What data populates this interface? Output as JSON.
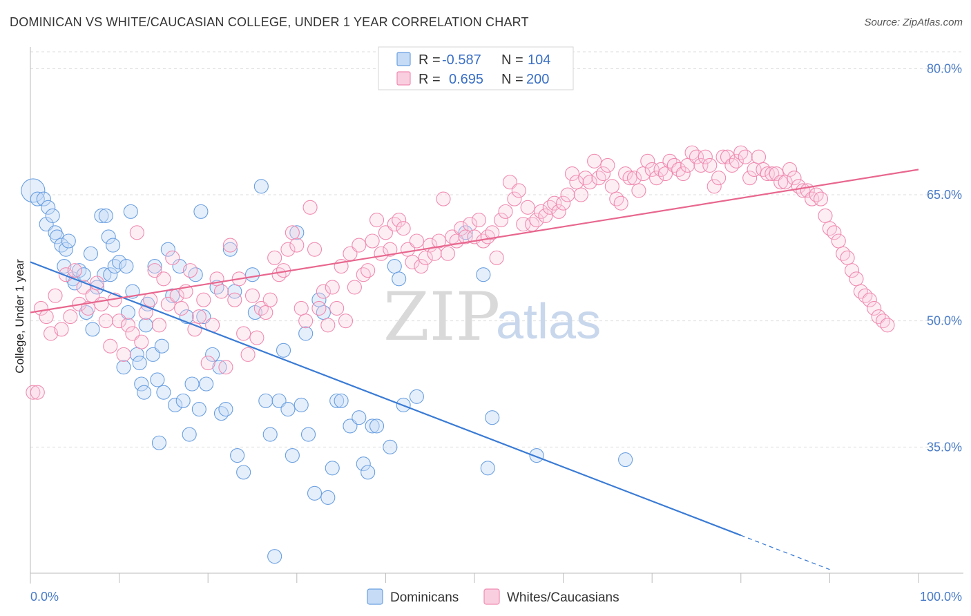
{
  "header": {
    "title": "DOMINICAN VS WHITE/CAUCASIAN COLLEGE, UNDER 1 YEAR CORRELATION CHART",
    "source": "Source: ZipAtlas.com"
  },
  "watermark": {
    "part1": "ZIP",
    "part2": "atlas"
  },
  "legend": {
    "rows": [
      {
        "r_label": "R =",
        "r_value": "-0.587",
        "n_label": "N =",
        "n_value": "104",
        "color": "#6a9fe0"
      },
      {
        "r_label": "R =",
        "r_value": "0.695",
        "n_label": "N =",
        "n_value": "200",
        "color": "#f08bb0"
      }
    ]
  },
  "bottom_legend": {
    "items": [
      {
        "label": "Dominicans",
        "color": "#6a9fe0"
      },
      {
        "label": "Whites/Caucasians",
        "color": "#f08bb0"
      }
    ]
  },
  "chart_data": {
    "type": "scatter",
    "title": "DOMINICAN VS WHITE/CAUCASIAN COLLEGE, UNDER 1 YEAR CORRELATION CHART",
    "xlabel": "",
    "ylabel": "College, Under 1 year",
    "xlim": [
      0,
      100
    ],
    "ylim": [
      20,
      82
    ],
    "x_tick_labels": [
      "0.0%",
      "100.0%"
    ],
    "y_ticks": [
      35,
      50,
      65,
      80
    ],
    "y_tick_labels": [
      "35.0%",
      "50.0%",
      "65.0%",
      "80.0%"
    ],
    "grid": true,
    "series": [
      {
        "name": "Dominicans",
        "color": "#6a9fe0",
        "trend": {
          "x0": 0,
          "y0": 57.0,
          "x1": 80,
          "y1": 24.5,
          "dashed_to_x": 90
        },
        "points": [
          [
            0.3,
            65.5
          ],
          [
            0.8,
            64.5
          ],
          [
            1.5,
            64.5
          ],
          [
            1.8,
            61.5
          ],
          [
            2.0,
            63.5
          ],
          [
            2.5,
            62.5
          ],
          [
            2.8,
            60.5
          ],
          [
            3.0,
            60.0
          ],
          [
            3.5,
            59.0
          ],
          [
            3.8,
            56.5
          ],
          [
            4.0,
            58.5
          ],
          [
            4.3,
            59.5
          ],
          [
            4.8,
            55.0
          ],
          [
            5.0,
            54.5
          ],
          [
            5.5,
            56.0
          ],
          [
            6.0,
            55.5
          ],
          [
            6.3,
            51.0
          ],
          [
            6.8,
            58.0
          ],
          [
            7.0,
            49.0
          ],
          [
            7.5,
            54.0
          ],
          [
            8.0,
            62.5
          ],
          [
            8.3,
            55.5
          ],
          [
            8.5,
            62.5
          ],
          [
            8.8,
            60.0
          ],
          [
            9.0,
            55.5
          ],
          [
            9.3,
            59.0
          ],
          [
            9.5,
            56.5
          ],
          [
            10.0,
            57.0
          ],
          [
            10.5,
            44.5
          ],
          [
            10.8,
            56.5
          ],
          [
            11.0,
            51.0
          ],
          [
            11.3,
            63.0
          ],
          [
            11.5,
            53.5
          ],
          [
            12.0,
            46.0
          ],
          [
            12.3,
            45.0
          ],
          [
            12.5,
            42.5
          ],
          [
            12.8,
            41.5
          ],
          [
            13.0,
            49.5
          ],
          [
            13.2,
            52.0
          ],
          [
            13.8,
            46.0
          ],
          [
            14.0,
            56.5
          ],
          [
            14.3,
            43.0
          ],
          [
            14.5,
            35.5
          ],
          [
            14.8,
            47.0
          ],
          [
            15.0,
            41.5
          ],
          [
            15.5,
            58.5
          ],
          [
            16.0,
            53.0
          ],
          [
            16.3,
            40.0
          ],
          [
            16.8,
            56.5
          ],
          [
            17.2,
            40.5
          ],
          [
            17.6,
            50.5
          ],
          [
            17.9,
            36.5
          ],
          [
            18.2,
            42.5
          ],
          [
            18.6,
            55.5
          ],
          [
            19.0,
            39.5
          ],
          [
            19.2,
            63.0
          ],
          [
            19.5,
            50.5
          ],
          [
            19.8,
            42.5
          ],
          [
            20.5,
            46.0
          ],
          [
            21.0,
            54.0
          ],
          [
            21.3,
            44.5
          ],
          [
            21.5,
            39.0
          ],
          [
            22.0,
            39.5
          ],
          [
            22.5,
            58.5
          ],
          [
            23.0,
            53.5
          ],
          [
            23.3,
            34.0
          ],
          [
            24.0,
            32.0
          ],
          [
            25.0,
            55.5
          ],
          [
            25.3,
            51.0
          ],
          [
            26.0,
            66.0
          ],
          [
            26.5,
            40.5
          ],
          [
            27.0,
            36.5
          ],
          [
            27.5,
            22.0
          ],
          [
            28.0,
            40.5
          ],
          [
            28.5,
            46.5
          ],
          [
            29.0,
            39.5
          ],
          [
            29.5,
            34.0
          ],
          [
            30.0,
            60.5
          ],
          [
            30.5,
            40.0
          ],
          [
            31.0,
            48.5
          ],
          [
            31.3,
            36.5
          ],
          [
            32.0,
            29.5
          ],
          [
            32.5,
            52.5
          ],
          [
            33.0,
            51.0
          ],
          [
            33.5,
            29.0
          ],
          [
            34.0,
            32.5
          ],
          [
            34.5,
            40.5
          ],
          [
            35.0,
            40.5
          ],
          [
            36.0,
            37.5
          ],
          [
            37.0,
            38.5
          ],
          [
            37.5,
            33.0
          ],
          [
            38.0,
            32.0
          ],
          [
            38.5,
            37.5
          ],
          [
            39.0,
            37.5
          ],
          [
            40.5,
            35.0
          ],
          [
            41.0,
            56.5
          ],
          [
            41.5,
            55.0
          ],
          [
            42.0,
            40.0
          ],
          [
            43.5,
            41.0
          ],
          [
            49.0,
            60.5
          ],
          [
            51.0,
            55.5
          ],
          [
            51.5,
            32.5
          ],
          [
            52.0,
            38.5
          ],
          [
            57.0,
            34.0
          ],
          [
            67.0,
            33.5
          ]
        ]
      },
      {
        "name": "Whites/Caucasians",
        "color": "#f08bb0",
        "trend": {
          "x0": 0,
          "y0": 51.0,
          "x1": 100,
          "y1": 68.0
        },
        "points": [
          [
            0.3,
            41.5
          ],
          [
            0.8,
            41.5
          ],
          [
            1.2,
            51.5
          ],
          [
            1.8,
            50.5
          ],
          [
            2.3,
            48.5
          ],
          [
            2.8,
            53.0
          ],
          [
            3.5,
            49.0
          ],
          [
            4.0,
            55.5
          ],
          [
            4.5,
            50.5
          ],
          [
            5.0,
            56.0
          ],
          [
            5.5,
            52.0
          ],
          [
            6.0,
            54.0
          ],
          [
            6.5,
            51.5
          ],
          [
            7.0,
            53.0
          ],
          [
            7.5,
            54.5
          ],
          [
            8.0,
            52.0
          ],
          [
            8.5,
            50.0
          ],
          [
            9.0,
            47.0
          ],
          [
            9.5,
            52.5
          ],
          [
            10.0,
            50.0
          ],
          [
            10.5,
            46.0
          ],
          [
            11.0,
            49.5
          ],
          [
            11.5,
            48.5
          ],
          [
            12.0,
            60.5
          ],
          [
            12.5,
            47.5
          ],
          [
            13.0,
            51.0
          ],
          [
            13.5,
            52.5
          ],
          [
            14.0,
            56.0
          ],
          [
            14.5,
            49.5
          ],
          [
            15.0,
            55.0
          ],
          [
            15.5,
            52.0
          ],
          [
            16.0,
            57.5
          ],
          [
            16.5,
            53.0
          ],
          [
            17.0,
            51.5
          ],
          [
            17.5,
            53.5
          ],
          [
            18.0,
            56.0
          ],
          [
            18.5,
            49.0
          ],
          [
            19.0,
            50.5
          ],
          [
            19.5,
            52.5
          ],
          [
            20.0,
            45.0
          ],
          [
            20.5,
            49.5
          ],
          [
            21.0,
            55.0
          ],
          [
            21.5,
            53.5
          ],
          [
            22.0,
            44.5
          ],
          [
            22.5,
            59.0
          ],
          [
            23.0,
            52.5
          ],
          [
            23.5,
            55.0
          ],
          [
            24.0,
            48.5
          ],
          [
            24.5,
            46.0
          ],
          [
            25.0,
            53.0
          ],
          [
            25.5,
            48.0
          ],
          [
            26.0,
            51.5
          ],
          [
            26.5,
            51.0
          ],
          [
            27.0,
            52.5
          ],
          [
            27.5,
            57.5
          ],
          [
            28.0,
            55.5
          ],
          [
            28.5,
            56.0
          ],
          [
            29.0,
            58.5
          ],
          [
            29.5,
            60.5
          ],
          [
            30.0,
            59.0
          ],
          [
            30.5,
            51.5
          ],
          [
            31.0,
            50.0
          ],
          [
            31.5,
            63.5
          ],
          [
            32.0,
            58.5
          ],
          [
            32.5,
            51.5
          ],
          [
            33.0,
            53.5
          ],
          [
            33.5,
            49.5
          ],
          [
            34.0,
            54.0
          ],
          [
            34.5,
            51.5
          ],
          [
            35.0,
            56.5
          ],
          [
            35.5,
            50.0
          ],
          [
            36.0,
            58.0
          ],
          [
            36.5,
            54.0
          ],
          [
            37.0,
            59.0
          ],
          [
            37.5,
            55.5
          ],
          [
            38.0,
            56.0
          ],
          [
            38.5,
            59.5
          ],
          [
            39.0,
            62.0
          ],
          [
            39.5,
            58.0
          ],
          [
            40.0,
            60.5
          ],
          [
            40.5,
            58.5
          ],
          [
            41.0,
            61.5
          ],
          [
            41.5,
            62.0
          ],
          [
            42.0,
            61.0
          ],
          [
            42.5,
            58.5
          ],
          [
            43.0,
            57.0
          ],
          [
            43.5,
            59.5
          ],
          [
            44.0,
            56.5
          ],
          [
            44.5,
            57.5
          ],
          [
            45.0,
            59.0
          ],
          [
            45.5,
            58.0
          ],
          [
            46.0,
            59.5
          ],
          [
            46.5,
            64.5
          ],
          [
            47.0,
            58.0
          ],
          [
            47.5,
            60.0
          ],
          [
            48.0,
            59.5
          ],
          [
            48.5,
            61.0
          ],
          [
            49.0,
            60.0
          ],
          [
            49.5,
            61.5
          ],
          [
            50.0,
            60.0
          ],
          [
            50.5,
            62.0
          ],
          [
            51.0,
            59.5
          ],
          [
            51.5,
            60.0
          ],
          [
            52.0,
            60.5
          ],
          [
            52.5,
            57.5
          ],
          [
            53.0,
            62.0
          ],
          [
            53.5,
            63.0
          ],
          [
            54.0,
            66.5
          ],
          [
            54.5,
            64.5
          ],
          [
            55.0,
            65.5
          ],
          [
            55.5,
            61.5
          ],
          [
            56.0,
            63.5
          ],
          [
            56.5,
            61.5
          ],
          [
            57.0,
            62.0
          ],
          [
            57.5,
            63.0
          ],
          [
            58.0,
            62.5
          ],
          [
            58.5,
            63.5
          ],
          [
            59.0,
            64.0
          ],
          [
            59.5,
            63.0
          ],
          [
            60.0,
            64.0
          ],
          [
            60.5,
            65.0
          ],
          [
            61.0,
            67.5
          ],
          [
            61.5,
            66.5
          ],
          [
            62.0,
            65.0
          ],
          [
            62.5,
            67.0
          ],
          [
            63.0,
            66.5
          ],
          [
            63.5,
            69.0
          ],
          [
            64.0,
            67.0
          ],
          [
            64.5,
            67.5
          ],
          [
            65.0,
            68.5
          ],
          [
            65.5,
            66.0
          ],
          [
            66.0,
            64.5
          ],
          [
            66.5,
            64.0
          ],
          [
            67.0,
            67.5
          ],
          [
            67.5,
            67.0
          ],
          [
            68.0,
            67.0
          ],
          [
            68.5,
            65.5
          ],
          [
            69.0,
            67.5
          ],
          [
            69.5,
            69.0
          ],
          [
            70.0,
            68.0
          ],
          [
            70.5,
            67.0
          ],
          [
            71.0,
            68.0
          ],
          [
            71.5,
            67.5
          ],
          [
            72.0,
            69.0
          ],
          [
            72.5,
            68.5
          ],
          [
            73.0,
            68.0
          ],
          [
            73.5,
            67.5
          ],
          [
            74.0,
            68.5
          ],
          [
            74.5,
            70.0
          ],
          [
            75.0,
            69.5
          ],
          [
            75.5,
            68.5
          ],
          [
            76.0,
            69.5
          ],
          [
            76.5,
            68.5
          ],
          [
            77.0,
            66.0
          ],
          [
            77.5,
            67.0
          ],
          [
            78.0,
            69.5
          ],
          [
            78.5,
            69.5
          ],
          [
            79.0,
            68.5
          ],
          [
            79.5,
            69.0
          ],
          [
            80.0,
            70.0
          ],
          [
            80.5,
            69.5
          ],
          [
            81.0,
            67.0
          ],
          [
            81.5,
            68.0
          ],
          [
            82.0,
            69.5
          ],
          [
            82.5,
            68.0
          ],
          [
            83.0,
            67.5
          ],
          [
            83.5,
            67.5
          ],
          [
            84.0,
            67.5
          ],
          [
            84.5,
            66.5
          ],
          [
            85.0,
            66.5
          ],
          [
            85.5,
            68.0
          ],
          [
            86.0,
            67.0
          ],
          [
            86.5,
            66.0
          ],
          [
            87.0,
            65.5
          ],
          [
            87.5,
            65.5
          ],
          [
            88.0,
            64.5
          ],
          [
            88.5,
            65.0
          ],
          [
            89.0,
            64.5
          ],
          [
            89.5,
            62.5
          ],
          [
            90.0,
            61.0
          ],
          [
            90.5,
            60.5
          ],
          [
            91.0,
            59.5
          ],
          [
            91.5,
            58.0
          ],
          [
            92.0,
            57.5
          ],
          [
            92.5,
            56.0
          ],
          [
            93.0,
            55.0
          ],
          [
            93.5,
            53.5
          ],
          [
            94.0,
            53.0
          ],
          [
            94.5,
            52.5
          ],
          [
            95.0,
            51.5
          ],
          [
            95.5,
            50.5
          ],
          [
            96.0,
            50.0
          ],
          [
            96.5,
            49.5
          ]
        ]
      }
    ]
  }
}
